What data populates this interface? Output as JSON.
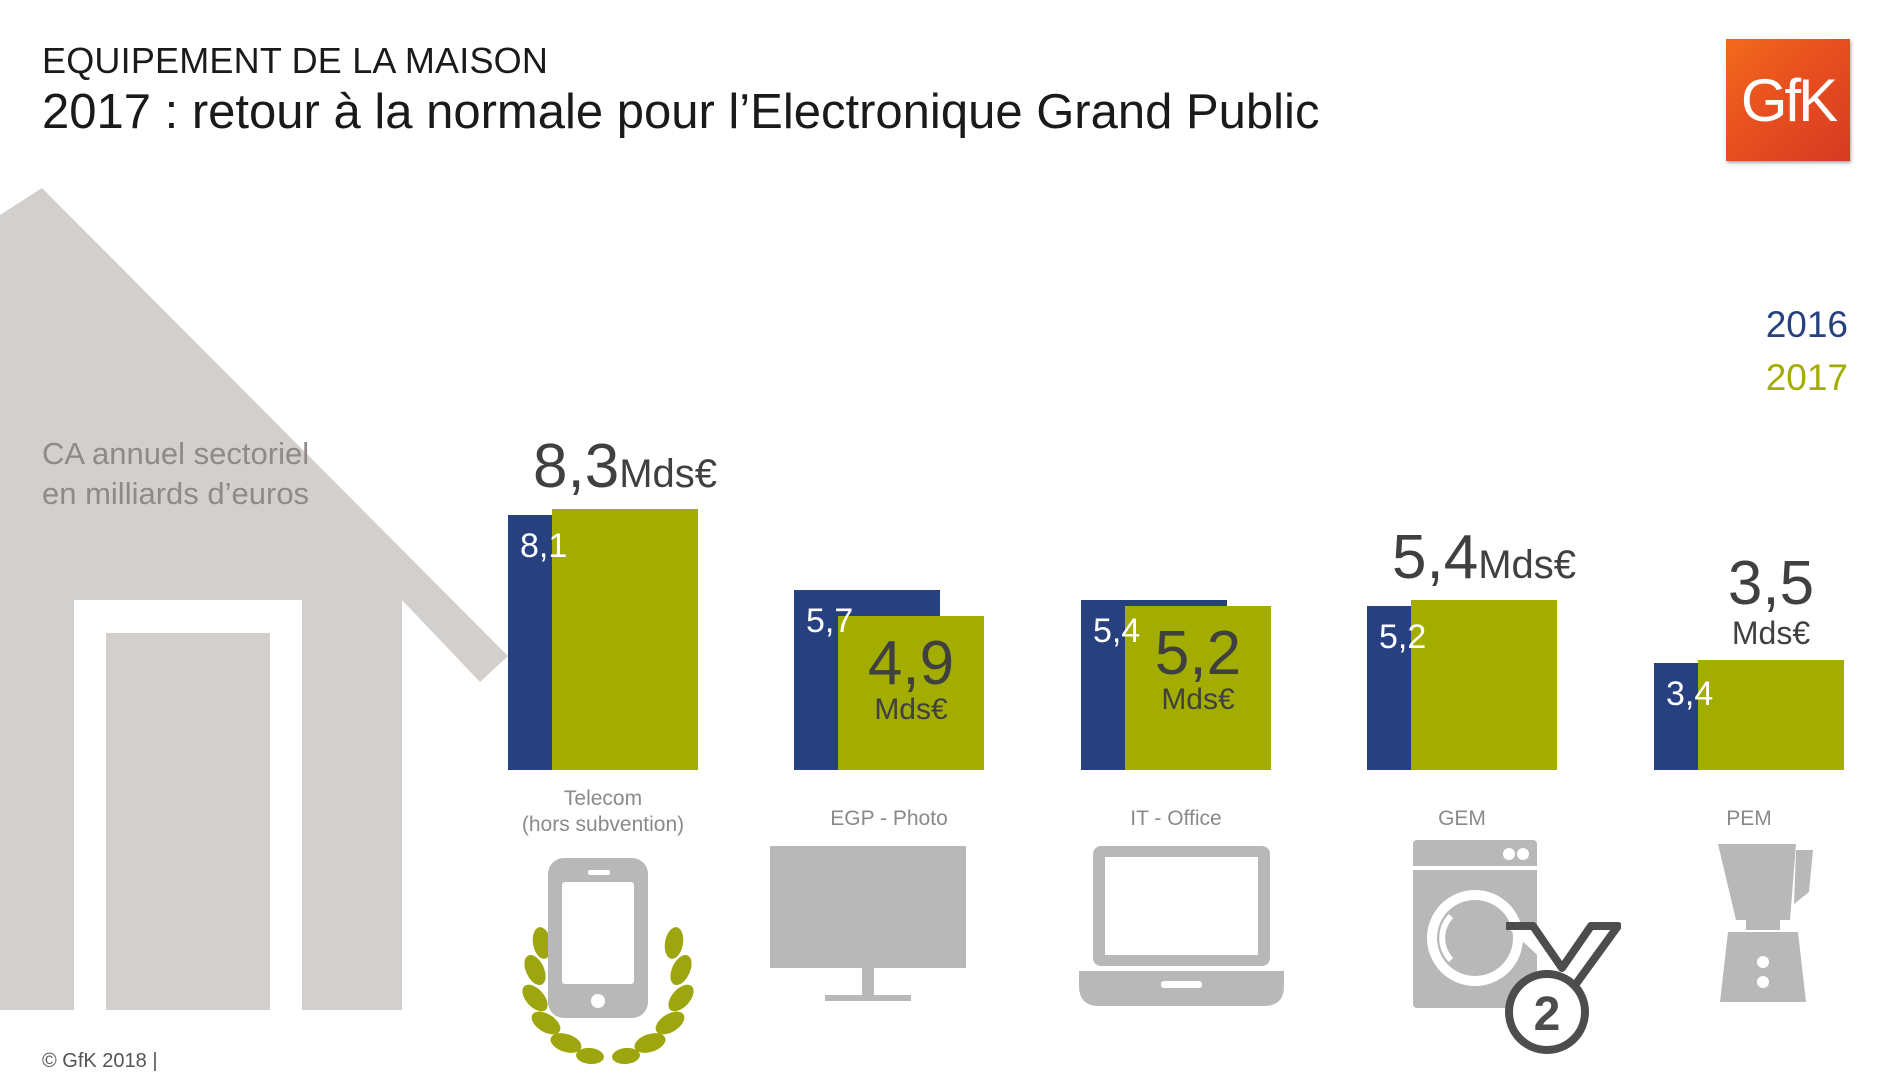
{
  "header": {
    "kicker": "EQUIPEMENT DE LA MAISON",
    "headline": "2017 : retour à la normale pour l’Electronique Grand Public"
  },
  "logo": {
    "text": "GfK",
    "color": "#e8501f"
  },
  "footer": {
    "text": "© GfK 2018 |"
  },
  "chart_data": {
    "type": "bar",
    "title": "",
    "ylabel_lines": [
      "CA annuel sectoriel",
      "en milliards d’euros"
    ],
    "categories": [
      {
        "lines": [
          "Telecom",
          "(hors subvention)"
        ],
        "icon": "smartphone-laurel-icon"
      },
      {
        "lines": [
          "EGP - Photo"
        ],
        "icon": "television-icon"
      },
      {
        "lines": [
          "IT - Office"
        ],
        "icon": "laptop-icon"
      },
      {
        "lines": [
          "GEM"
        ],
        "icon": "washing-machine-medal-icon"
      },
      {
        "lines": [
          "PEM"
        ],
        "icon": "blender-icon"
      }
    ],
    "series": [
      {
        "name": "2016",
        "color": "#27407f",
        "values": [
          8.1,
          5.7,
          5.4,
          5.2,
          3.4
        ],
        "labels": [
          "8,1",
          "5,7",
          "5,4",
          "5,2",
          "3,4"
        ]
      },
      {
        "name": "2017",
        "color": "#a2ad00",
        "values": [
          8.3,
          4.9,
          5.2,
          5.4,
          3.5
        ],
        "labels": [
          "8,3",
          "4,9",
          "5,2",
          "5,4",
          "3,5"
        ]
      }
    ],
    "total_unit": "Mds€",
    "legend_position": "right",
    "grid": false
  }
}
